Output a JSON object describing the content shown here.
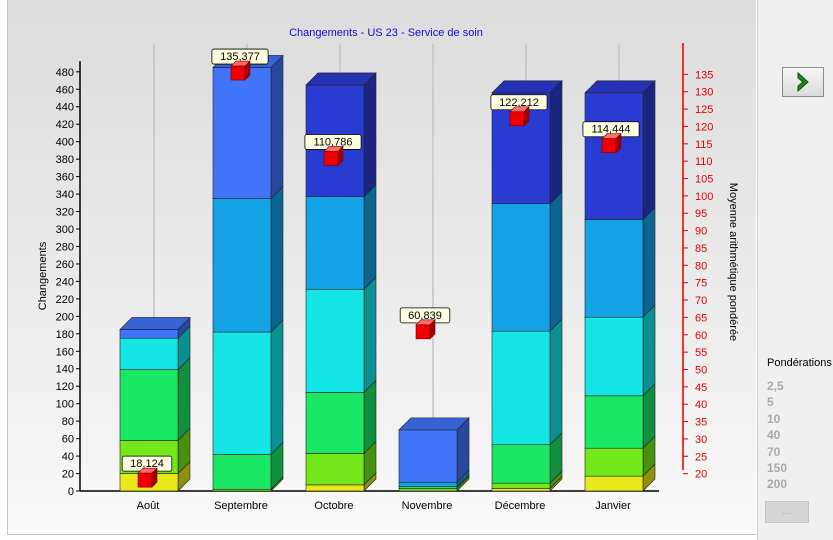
{
  "chart_data": {
    "type": "bar",
    "stacked": true,
    "three_d": true,
    "title": "Changements - US 23 - Service de soin",
    "ylabel": "Changements",
    "y2label": "Moyenne arithmétique pondérée",
    "categories": [
      "Août",
      "Septembre",
      "Octobre",
      "Novembre",
      "Décembre",
      "Janvier"
    ],
    "ylim": [
      0,
      490
    ],
    "y_ticks": [
      0,
      20,
      40,
      60,
      80,
      100,
      120,
      140,
      160,
      180,
      200,
      220,
      240,
      260,
      280,
      300,
      320,
      340,
      360,
      380,
      400,
      420,
      440,
      460,
      480
    ],
    "y2lim": [
      15,
      138
    ],
    "y2_ticks": [
      20,
      25,
      30,
      35,
      40,
      45,
      50,
      55,
      60,
      65,
      70,
      75,
      80,
      85,
      90,
      95,
      100,
      105,
      110,
      115,
      120,
      125,
      130,
      135
    ],
    "segment_colors": [
      "#e8e81a",
      "#72e81a",
      "#1ae864",
      "#14e6e6",
      "#14a3e6",
      "#4274fa",
      "#2a3bd2"
    ],
    "series": [
      {
        "values": [
          20,
          0,
          7,
          0,
          3,
          17
        ]
      },
      {
        "values": [
          38,
          2,
          36,
          3,
          6,
          32
        ]
      },
      {
        "values": [
          81,
          40,
          70,
          2,
          44,
          60
        ]
      },
      {
        "values": [
          36,
          140,
          118,
          0,
          130,
          90
        ]
      },
      {
        "values": [
          0,
          153,
          106,
          5,
          146,
          112
        ]
      },
      {
        "values": [
          10,
          150,
          0,
          60,
          0,
          0
        ]
      },
      {
        "values": [
          0,
          0,
          128,
          0,
          127,
          145
        ]
      }
    ],
    "line_series": {
      "axis": "right",
      "marker": "square",
      "color": "#ee0000",
      "values": [
        18.124,
        135.377,
        110.786,
        60.839,
        122.212,
        114.444
      ],
      "labels": [
        "18,124",
        "135,377",
        "110,786",
        "60,839",
        "122,212",
        "114,444"
      ]
    },
    "grid": false,
    "legend": "none"
  },
  "side_panel": {
    "next_icon": "chevron-right-icon",
    "next_icon_color": "#1b8a1b",
    "weights_title": "Pondérations",
    "weights": [
      "2,5",
      "5",
      "10",
      "40",
      "70",
      "150",
      "200"
    ],
    "more_button_label": "..."
  }
}
